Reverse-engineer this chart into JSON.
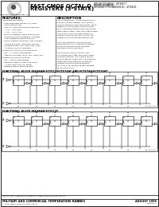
{
  "title_line1": "FAST CMOS OCTAL D",
  "title_line2": "REGISTERS (3-STATE)",
  "part_num1": "IDT54FCT574ATSO - IDT54FCT",
  "part_num2": "IDT54FCT574ATDB",
  "part_num3": "IDT54/86FCTY574A/01/01/01 - IDT54/01",
  "logo_text": "Integrated Device Technology, Inc.",
  "features_title": "FEATURES:",
  "description_title": "DESCRIPTION",
  "block_diagram_title1": "FUNCTIONAL BLOCK DIAGRAM FCT574/FCT574AT AND FCT574H/FCT574HT",
  "block_diagram_title2": "FUNCTIONAL BLOCK DIAGRAM FCT574T",
  "footer_left": "MILITARY AND COMMERCIAL TEMPERATURE RANGES",
  "footer_right": "AUGUST 1995",
  "footer_center": "3-11",
  "footer_trademark": "The IDT logo is a registered trademark of Integrated Device Technology, Inc.",
  "footer_copyright": "© 1995 Integrated Device Technology, Inc.",
  "footer_partnum": "000-00001",
  "bg_color": "#ffffff",
  "border_color": "#000000",
  "n_flip_flops": 8
}
